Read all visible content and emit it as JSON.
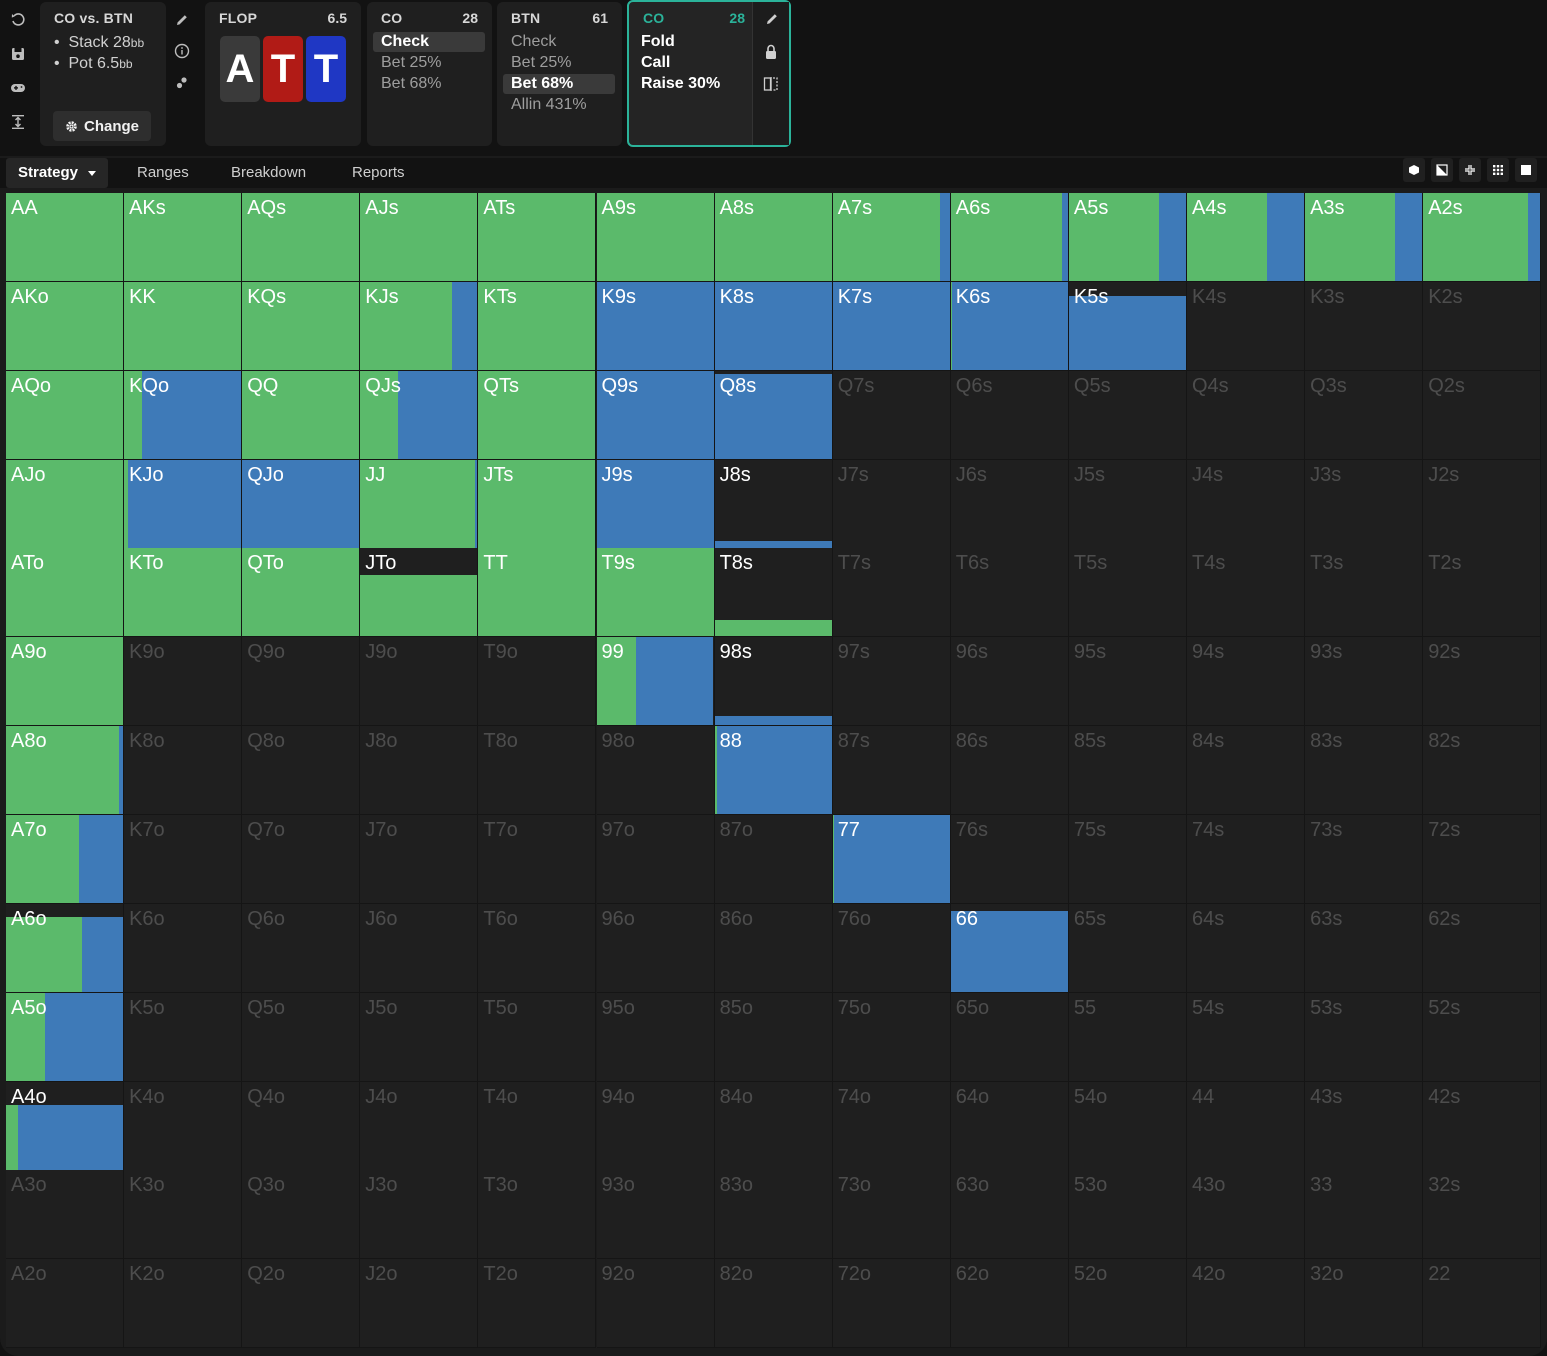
{
  "colors": {
    "call": "#5bba6b",
    "raise": "#3e7ab8",
    "accent": "#2bb39a"
  },
  "info_panel": {
    "title": "CO vs. BTN",
    "stack_label": "Stack 28",
    "stack_unit": "bb",
    "pot_label": "Pot 6.5",
    "pot_unit": "bb",
    "change_label": "Change"
  },
  "flop_panel": {
    "street": "FLOP",
    "pot": "6.5",
    "cards": [
      {
        "rank": "A",
        "suit": "spades",
        "color": "#3a3a3a"
      },
      {
        "rank": "T",
        "suit": "hearts",
        "color": "#b11b16"
      },
      {
        "rank": "T",
        "suit": "diamonds",
        "color": "#1f37c4"
      }
    ]
  },
  "actions": [
    {
      "player": "CO",
      "stack": "28",
      "options": [
        "Check",
        "Bet 25%",
        "Bet 68%"
      ],
      "selected": 0
    },
    {
      "player": "BTN",
      "stack": "61",
      "options": [
        "Check",
        "Bet 25%",
        "Bet 68%",
        "Allin 431%"
      ],
      "selected": 2
    },
    {
      "player": "CO",
      "stack": "28",
      "options": [
        "Fold",
        "Call",
        "Raise 30%"
      ],
      "selected": -1,
      "current": true
    }
  ],
  "tabs": {
    "strategy": "Strategy",
    "ranges": "Ranges",
    "breakdown": "Breakdown",
    "reports": "Reports"
  },
  "matrix": [
    [
      [
        "AA",
        1,
        1
      ],
      [
        "AKs",
        1,
        1
      ],
      [
        "AQs",
        1,
        1
      ],
      [
        "AJs",
        1,
        1
      ],
      [
        "ATs",
        1,
        1
      ],
      [
        "A9s",
        1,
        1
      ],
      [
        "A8s",
        1,
        1
      ],
      [
        "A7s",
        1,
        0.92
      ],
      [
        "A6s",
        1,
        0.95
      ],
      [
        "A5s",
        1,
        0.77
      ],
      [
        "A4s",
        1,
        0.68
      ],
      [
        "A3s",
        1,
        0.77
      ],
      [
        "A2s",
        1,
        0.9
      ]
    ],
    [
      [
        "AKo",
        1,
        1
      ],
      [
        "KK",
        1,
        1
      ],
      [
        "KQs",
        1,
        1
      ],
      [
        "KJs",
        1,
        0.78
      ],
      [
        "KTs",
        1,
        1
      ],
      [
        "K9s",
        1,
        0
      ],
      [
        "K8s",
        1,
        0
      ],
      [
        "K7s",
        1,
        0
      ],
      [
        "K6s",
        1,
        0.01
      ],
      [
        "K5s",
        0.84,
        0
      ],
      [
        "K4s",
        0,
        0
      ],
      [
        "K3s",
        0,
        0
      ],
      [
        "K2s",
        0,
        0
      ]
    ],
    [
      [
        "AQo",
        1,
        1
      ],
      [
        "KQo",
        1,
        0.15
      ],
      [
        "QQ",
        1,
        1
      ],
      [
        "QJs",
        1,
        0.32
      ],
      [
        "QTs",
        1,
        1
      ],
      [
        "Q9s",
        1,
        0
      ],
      [
        "Q8s",
        0.96,
        0
      ],
      [
        "Q7s",
        0,
        0
      ],
      [
        "Q6s",
        0,
        0
      ],
      [
        "Q5s",
        0,
        0
      ],
      [
        "Q4s",
        0,
        0
      ],
      [
        "Q3s",
        0,
        0
      ],
      [
        "Q2s",
        0,
        0
      ]
    ],
    [
      [
        "AJo",
        1,
        1
      ],
      [
        "KJo",
        1,
        0.03
      ],
      [
        "QJo",
        1,
        0
      ],
      [
        "JJ",
        1,
        0.98
      ],
      [
        "JTs",
        1,
        1
      ],
      [
        "J9s",
        1,
        0
      ],
      [
        "J8s",
        0.07,
        0
      ],
      [
        "J7s",
        0,
        0
      ],
      [
        "J6s",
        0,
        0
      ],
      [
        "J5s",
        0,
        0
      ],
      [
        "J4s",
        0,
        0
      ],
      [
        "J3s",
        0,
        0
      ],
      [
        "J2s",
        0,
        0
      ]
    ],
    [
      [
        "ATo",
        1,
        1
      ],
      [
        "KTo",
        1,
        1
      ],
      [
        "QTo",
        1,
        1
      ],
      [
        "JTo",
        0.7,
        1
      ],
      [
        "TT",
        1,
        1
      ],
      [
        "T9s",
        1,
        1
      ],
      [
        "T8s",
        0.19,
        1
      ],
      [
        "T7s",
        0,
        0
      ],
      [
        "T6s",
        0,
        0
      ],
      [
        "T5s",
        0,
        0
      ],
      [
        "T4s",
        0,
        0
      ],
      [
        "T3s",
        0,
        0
      ],
      [
        "T2s",
        0,
        0
      ]
    ],
    [
      [
        "A9o",
        1,
        1
      ],
      [
        "K9o",
        0,
        0
      ],
      [
        "Q9o",
        0,
        0
      ],
      [
        "J9o",
        0,
        0
      ],
      [
        "T9o",
        0,
        0
      ],
      [
        "99",
        1,
        0.34
      ],
      [
        "98s",
        0.1,
        0
      ],
      [
        "97s",
        0,
        0
      ],
      [
        "96s",
        0,
        0
      ],
      [
        "95s",
        0,
        0
      ],
      [
        "94s",
        0,
        0
      ],
      [
        "93s",
        0,
        0
      ],
      [
        "92s",
        0,
        0
      ]
    ],
    [
      [
        "A8o",
        1,
        0.97
      ],
      [
        "K8o",
        0,
        0
      ],
      [
        "Q8o",
        0,
        0
      ],
      [
        "J8o",
        0,
        0
      ],
      [
        "T8o",
        0,
        0
      ],
      [
        "98o",
        0,
        0
      ],
      [
        "88",
        1,
        0.02
      ],
      [
        "87s",
        0,
        0
      ],
      [
        "86s",
        0,
        0
      ],
      [
        "85s",
        0,
        0
      ],
      [
        "84s",
        0,
        0
      ],
      [
        "83s",
        0,
        0
      ],
      [
        "82s",
        0,
        0
      ]
    ],
    [
      [
        "A7o",
        1,
        0.62
      ],
      [
        "K7o",
        0,
        0
      ],
      [
        "Q7o",
        0,
        0
      ],
      [
        "J7o",
        0,
        0
      ],
      [
        "T7o",
        0,
        0
      ],
      [
        "97o",
        0,
        0
      ],
      [
        "87o",
        0,
        0
      ],
      [
        "77",
        1,
        0.01
      ],
      [
        "76s",
        0,
        0
      ],
      [
        "75s",
        0,
        0
      ],
      [
        "74s",
        0,
        0
      ],
      [
        "73s",
        0,
        0
      ],
      [
        "72s",
        0,
        0
      ]
    ],
    [
      [
        "A6o",
        0.85,
        0.65
      ],
      [
        "K6o",
        0,
        0
      ],
      [
        "Q6o",
        0,
        0
      ],
      [
        "J6o",
        0,
        0
      ],
      [
        "T6o",
        0,
        0
      ],
      [
        "96o",
        0,
        0
      ],
      [
        "86o",
        0,
        0
      ],
      [
        "76o",
        0,
        0
      ],
      [
        "66",
        0.92,
        0
      ],
      [
        "65s",
        0,
        0
      ],
      [
        "64s",
        0,
        0
      ],
      [
        "63s",
        0,
        0
      ],
      [
        "62s",
        0,
        0
      ]
    ],
    [
      [
        "A5o",
        1,
        0.33
      ],
      [
        "K5o",
        0,
        0
      ],
      [
        "Q5o",
        0,
        0
      ],
      [
        "J5o",
        0,
        0
      ],
      [
        "T5o",
        0,
        0
      ],
      [
        "95o",
        0,
        0
      ],
      [
        "85o",
        0,
        0
      ],
      [
        "75o",
        0,
        0
      ],
      [
        "65o",
        0,
        0
      ],
      [
        "55",
        0,
        0
      ],
      [
        "54s",
        0,
        0
      ],
      [
        "53s",
        0,
        0
      ],
      [
        "52s",
        0,
        0
      ]
    ],
    [
      [
        "A4o",
        0.73,
        0.1
      ],
      [
        "K4o",
        0,
        0
      ],
      [
        "Q4o",
        0,
        0
      ],
      [
        "J4o",
        0,
        0
      ],
      [
        "T4o",
        0,
        0
      ],
      [
        "94o",
        0,
        0
      ],
      [
        "84o",
        0,
        0
      ],
      [
        "74o",
        0,
        0
      ],
      [
        "64o",
        0,
        0
      ],
      [
        "54o",
        0,
        0
      ],
      [
        "44",
        0,
        0
      ],
      [
        "43s",
        0,
        0
      ],
      [
        "42s",
        0,
        0
      ]
    ],
    [
      [
        "A3o",
        0,
        0
      ],
      [
        "K3o",
        0,
        0
      ],
      [
        "Q3o",
        0,
        0
      ],
      [
        "J3o",
        0,
        0
      ],
      [
        "T3o",
        0,
        0
      ],
      [
        "93o",
        0,
        0
      ],
      [
        "83o",
        0,
        0
      ],
      [
        "73o",
        0,
        0
      ],
      [
        "63o",
        0,
        0
      ],
      [
        "53o",
        0,
        0
      ],
      [
        "43o",
        0,
        0
      ],
      [
        "33",
        0,
        0
      ],
      [
        "32s",
        0,
        0
      ]
    ],
    [
      [
        "A2o",
        0,
        0
      ],
      [
        "K2o",
        0,
        0
      ],
      [
        "Q2o",
        0,
        0
      ],
      [
        "J2o",
        0,
        0
      ],
      [
        "T2o",
        0,
        0
      ],
      [
        "92o",
        0,
        0
      ],
      [
        "82o",
        0,
        0
      ],
      [
        "72o",
        0,
        0
      ],
      [
        "62o",
        0,
        0
      ],
      [
        "52o",
        0,
        0
      ],
      [
        "42o",
        0,
        0
      ],
      [
        "32o",
        0,
        0
      ],
      [
        "22",
        0,
        0
      ]
    ]
  ]
}
